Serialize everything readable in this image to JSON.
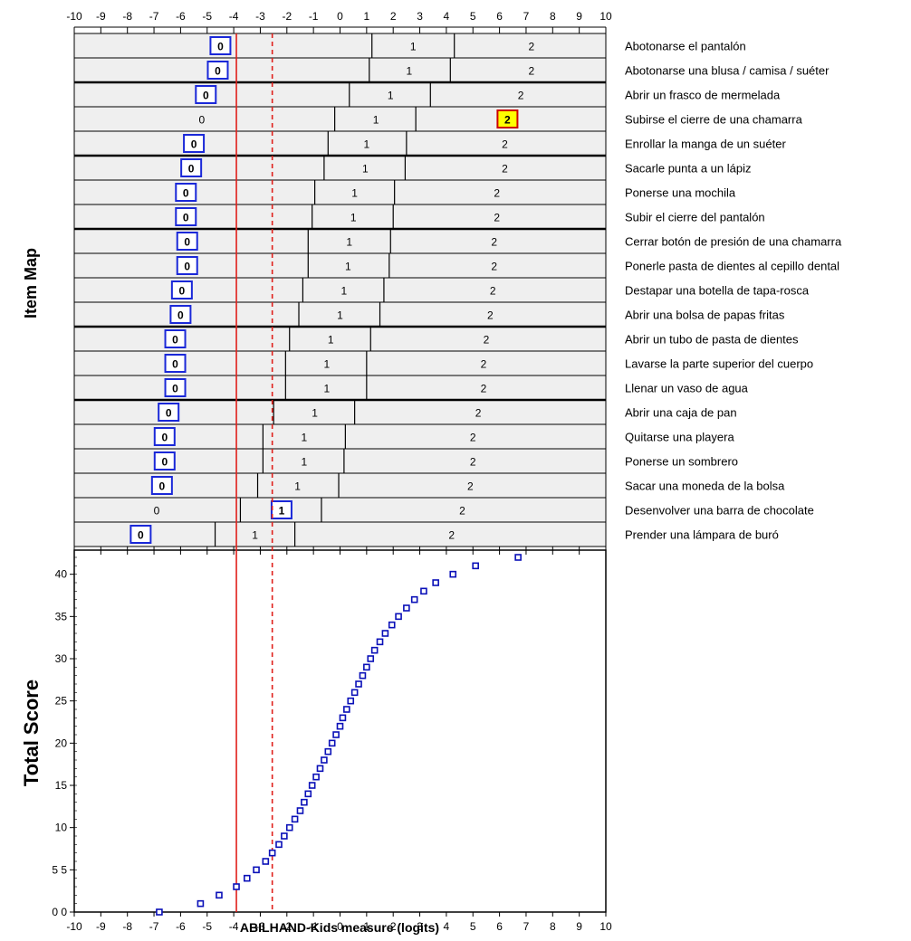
{
  "chart_data": [
    {
      "type": "item-map",
      "ylabel": "Item Map",
      "xlim": [
        -10,
        10
      ],
      "xticks": [
        -10,
        -9,
        -8,
        -7,
        -6,
        -5,
        -4,
        -3,
        -2,
        -1,
        0,
        1,
        2,
        3,
        4,
        5,
        6,
        7,
        8,
        9,
        10
      ],
      "reference_lines": [
        {
          "x": -3.9,
          "style": "solid",
          "color": "#e0201b"
        },
        {
          "x": -2.55,
          "style": "dashed",
          "color": "#e0201b"
        }
      ],
      "category_labels": [
        "0",
        "1",
        "2"
      ],
      "items": [
        {
          "name": "Abotonarse el pantalón",
          "t1": 1.2,
          "t2": 4.3,
          "obs": 0,
          "label_pos": [
            -4.5,
            2.75,
            7.2
          ],
          "box": "blue"
        },
        {
          "name": "Abotonarse una blusa / camisa / suéter",
          "t1": 1.1,
          "t2": 4.15,
          "obs": 0,
          "label_pos": [
            -4.6,
            2.6,
            7.2
          ],
          "box": "blue"
        },
        {
          "name": "Abrir un frasco de mermelada",
          "t1": 0.35,
          "t2": 3.4,
          "obs": 0,
          "label_pos": [
            -5.05,
            1.9,
            6.8
          ],
          "box": "blue"
        },
        {
          "name": "Subirse el cierre de una chamarra",
          "t1": -0.2,
          "t2": 2.85,
          "obs": 2,
          "label_pos": [
            -5.2,
            1.35,
            6.3
          ],
          "box": "yellow"
        },
        {
          "name": "Enrollar la manga de un suéter",
          "t1": -0.45,
          "t2": 2.5,
          "obs": 0,
          "label_pos": [
            -5.5,
            1.0,
            6.2
          ],
          "box": "blue"
        },
        {
          "name": "Sacarle punta a un lápiz",
          "t1": -0.6,
          "t2": 2.45,
          "obs": 0,
          "label_pos": [
            -5.6,
            0.95,
            6.2
          ],
          "box": "blue"
        },
        {
          "name": "Ponerse una mochila",
          "t1": -0.95,
          "t2": 2.05,
          "obs": 0,
          "label_pos": [
            -5.8,
            0.55,
            5.9
          ],
          "box": "blue"
        },
        {
          "name": "Subir el cierre del pantalón",
          "t1": -1.05,
          "t2": 2.0,
          "obs": 0,
          "label_pos": [
            -5.8,
            0.5,
            5.9
          ],
          "box": "blue"
        },
        {
          "name": "Cerrar botón de presión de una chamarra",
          "t1": -1.2,
          "t2": 1.9,
          "obs": 0,
          "label_pos": [
            -5.75,
            0.35,
            5.8
          ],
          "box": "blue"
        },
        {
          "name": "Ponerle pasta de dientes al cepillo dental",
          "t1": -1.2,
          "t2": 1.85,
          "obs": 0,
          "label_pos": [
            -5.75,
            0.3,
            5.8
          ],
          "box": "blue"
        },
        {
          "name": "Destapar una botella de tapa-rosca",
          "t1": -1.4,
          "t2": 1.65,
          "obs": 0,
          "label_pos": [
            -5.95,
            0.15,
            5.75
          ],
          "box": "blue"
        },
        {
          "name": "Abrir una bolsa de papas fritas",
          "t1": -1.55,
          "t2": 1.5,
          "obs": 0,
          "label_pos": [
            -6.0,
            0.0,
            5.65
          ],
          "box": "blue"
        },
        {
          "name": "Abrir un tubo de pasta de dientes",
          "t1": -1.9,
          "t2": 1.15,
          "obs": 0,
          "label_pos": [
            -6.2,
            -0.35,
            5.5
          ],
          "box": "blue"
        },
        {
          "name": "Lavarse la parte superior del cuerpo",
          "t1": -2.05,
          "t2": 1.0,
          "obs": 0,
          "label_pos": [
            -6.2,
            -0.5,
            5.4
          ],
          "box": "blue"
        },
        {
          "name": "Llenar un vaso de agua",
          "t1": -2.05,
          "t2": 1.0,
          "obs": 0,
          "label_pos": [
            -6.2,
            -0.5,
            5.4
          ],
          "box": "blue"
        },
        {
          "name": "Abrir una caja de pan",
          "t1": -2.5,
          "t2": 0.55,
          "obs": 0,
          "label_pos": [
            -6.45,
            -0.95,
            5.2
          ],
          "box": "blue"
        },
        {
          "name": "Quitarse una playera",
          "t1": -2.9,
          "t2": 0.2,
          "obs": 0,
          "label_pos": [
            -6.6,
            -1.35,
            5.0
          ],
          "box": "blue"
        },
        {
          "name": "Ponerse un sombrero",
          "t1": -2.9,
          "t2": 0.15,
          "obs": 0,
          "label_pos": [
            -6.6,
            -1.35,
            5.0
          ],
          "box": "blue"
        },
        {
          "name": "Sacar una moneda de la bolsa",
          "t1": -3.1,
          "t2": -0.05,
          "obs": 0,
          "label_pos": [
            -6.7,
            -1.6,
            4.9
          ],
          "box": "blue"
        },
        {
          "name": "Desenvolver una barra de chocolate",
          "t1": -3.75,
          "t2": -0.7,
          "obs": 1,
          "label_pos": [
            -6.9,
            -2.2,
            4.6
          ],
          "box": "blue"
        },
        {
          "name": "Prender una lámpara de buró",
          "t1": -4.7,
          "t2": -1.7,
          "obs": 0,
          "label_pos": [
            -7.5,
            -3.2,
            4.2
          ],
          "box": "blue"
        }
      ]
    },
    {
      "type": "scatter",
      "ylabel": "Total Score",
      "xlabel": "ABILHAND-Kids measure (logits)",
      "xlim": [
        -10,
        10
      ],
      "ylim": [
        0,
        42
      ],
      "xticks": [
        -10,
        -9,
        -8,
        -7,
        -6,
        -5,
        -4,
        -3,
        -2,
        -1,
        0,
        1,
        2,
        3,
        4,
        5,
        6,
        7,
        8,
        9,
        10
      ],
      "yticks": [
        {
          "value": 0,
          "label": "0 0"
        },
        {
          "value": 5,
          "label": "5 5"
        },
        {
          "value": 10,
          "label": "10"
        },
        {
          "value": 15,
          "label": "15"
        },
        {
          "value": 20,
          "label": "20"
        },
        {
          "value": 25,
          "label": "25"
        },
        {
          "value": 30,
          "label": "30"
        },
        {
          "value": 35,
          "label": "35"
        },
        {
          "value": 40,
          "label": "40"
        }
      ],
      "reference_lines": [
        {
          "x": -3.9,
          "style": "solid",
          "color": "#e0201b"
        },
        {
          "x": -2.55,
          "style": "dashed",
          "color": "#e0201b"
        }
      ],
      "marker_color": "#0a10b8",
      "points": [
        [
          -6.8,
          0
        ],
        [
          -5.25,
          1
        ],
        [
          -4.55,
          2
        ],
        [
          -3.9,
          3
        ],
        [
          -3.5,
          4
        ],
        [
          -3.15,
          5
        ],
        [
          -2.8,
          6
        ],
        [
          -2.55,
          7
        ],
        [
          -2.3,
          8
        ],
        [
          -2.1,
          9
        ],
        [
          -1.9,
          10
        ],
        [
          -1.7,
          11
        ],
        [
          -1.5,
          12
        ],
        [
          -1.35,
          13
        ],
        [
          -1.2,
          14
        ],
        [
          -1.05,
          15
        ],
        [
          -0.9,
          16
        ],
        [
          -0.75,
          17
        ],
        [
          -0.6,
          18
        ],
        [
          -0.45,
          19
        ],
        [
          -0.3,
          20
        ],
        [
          -0.15,
          21
        ],
        [
          0.0,
          22
        ],
        [
          0.1,
          23
        ],
        [
          0.25,
          24
        ],
        [
          0.4,
          25
        ],
        [
          0.55,
          26
        ],
        [
          0.7,
          27
        ],
        [
          0.85,
          28
        ],
        [
          1.0,
          29
        ],
        [
          1.15,
          30
        ],
        [
          1.3,
          31
        ],
        [
          1.5,
          32
        ],
        [
          1.7,
          33
        ],
        [
          1.95,
          34
        ],
        [
          2.2,
          35
        ],
        [
          2.5,
          36
        ],
        [
          2.8,
          37
        ],
        [
          3.15,
          38
        ],
        [
          3.6,
          39
        ],
        [
          4.25,
          40
        ],
        [
          5.1,
          41
        ],
        [
          6.7,
          42
        ]
      ]
    }
  ]
}
